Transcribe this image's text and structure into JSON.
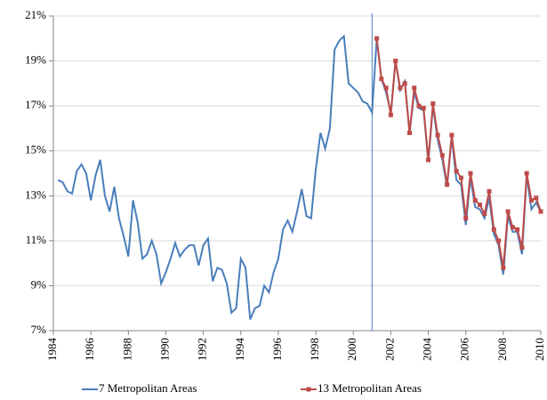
{
  "chart_data": {
    "type": "line",
    "xlim": [
      1984,
      2010
    ],
    "xticks": [
      1984,
      1986,
      1988,
      1990,
      1992,
      1994,
      1996,
      1998,
      2000,
      2002,
      2004,
      2006,
      2008,
      2010
    ],
    "ylim": [
      7,
      21
    ],
    "yticks": [
      {
        "value": 7,
        "label": "7%"
      },
      {
        "value": 9,
        "label": "9%"
      },
      {
        "value": 11,
        "label": "11%"
      },
      {
        "value": 13,
        "label": "13%"
      },
      {
        "value": 15,
        "label": "15%"
      },
      {
        "value": 17,
        "label": "17%"
      },
      {
        "value": 19,
        "label": "19%"
      },
      {
        "value": 21,
        "label": "21%"
      }
    ],
    "grid": true,
    "vline_x": 2001,
    "vline_color": "#4a7ebb",
    "legend": "bottom",
    "series": [
      {
        "name": "7 Metropolitan Areas",
        "color": "#4a7ebb",
        "marker": false,
        "x": [
          1984.25,
          1984.5,
          1984.75,
          1985,
          1985.25,
          1985.5,
          1985.75,
          1986,
          1986.25,
          1986.5,
          1986.75,
          1987,
          1987.25,
          1987.5,
          1987.75,
          1988,
          1988.25,
          1988.5,
          1988.75,
          1989,
          1989.25,
          1989.5,
          1989.75,
          1990,
          1990.25,
          1990.5,
          1990.75,
          1991,
          1991.25,
          1991.5,
          1991.75,
          1992,
          1992.25,
          1992.5,
          1992.75,
          1993,
          1993.25,
          1993.5,
          1993.75,
          1994,
          1994.25,
          1994.5,
          1994.75,
          1995,
          1995.25,
          1995.5,
          1995.75,
          1996,
          1996.25,
          1996.5,
          1996.75,
          1997,
          1997.25,
          1997.5,
          1997.75,
          1998,
          1998.25,
          1998.5,
          1998.75,
          1999,
          1999.25,
          1999.5,
          1999.75,
          2000,
          2000.25,
          2000.5,
          2000.75,
          2001,
          2001.25,
          2001.5,
          2001.75,
          2002,
          2002.25,
          2002.5,
          2002.75,
          2003,
          2003.25,
          2003.5,
          2003.75,
          2004,
          2004.25,
          2004.5,
          2004.75,
          2005,
          2005.25,
          2005.5,
          2005.75,
          2006,
          2006.25,
          2006.5,
          2006.75,
          2007,
          2007.25,
          2007.5,
          2007.75,
          2008,
          2008.25,
          2008.5,
          2008.75,
          2009,
          2009.25,
          2009.5,
          2009.75,
          2010
        ],
        "values": [
          13.7,
          13.6,
          13.2,
          13.1,
          14.1,
          14.4,
          14.0,
          12.8,
          13.9,
          14.6,
          13.0,
          12.3,
          13.4,
          12.0,
          11.2,
          10.3,
          12.8,
          11.8,
          10.2,
          10.4,
          11.0,
          10.4,
          9.1,
          9.6,
          10.2,
          10.9,
          10.3,
          10.6,
          10.8,
          10.8,
          9.9,
          10.8,
          11.1,
          9.2,
          9.8,
          9.7,
          9.1,
          7.8,
          8.0,
          10.2,
          9.8,
          7.5,
          8.0,
          8.1,
          9.0,
          8.7,
          9.6,
          10.2,
          11.5,
          11.9,
          11.4,
          12.3,
          13.3,
          12.1,
          12.0,
          14.2,
          15.8,
          15.1,
          16.0,
          19.5,
          19.9,
          20.1,
          18.0,
          17.8,
          17.6,
          17.2,
          17.1,
          16.7,
          20.0,
          18.2,
          17.6,
          16.7,
          19.0,
          17.7,
          18.1,
          15.8,
          17.6,
          16.9,
          16.8,
          14.5,
          17.0,
          15.5,
          14.6,
          13.4,
          15.6,
          13.7,
          13.5,
          11.7,
          13.8,
          12.5,
          12.4,
          12.0,
          12.9,
          11.3,
          10.8,
          9.5,
          12.1,
          11.4,
          11.4,
          10.4,
          13.9,
          12.4,
          12.7,
          12.3
        ]
      },
      {
        "name": "13 Metropolitan Areas",
        "color": "#be4b48",
        "marker": true,
        "x": [
          2001.25,
          2001.5,
          2001.75,
          2002,
          2002.25,
          2002.5,
          2002.75,
          2003,
          2003.25,
          2003.5,
          2003.75,
          2004,
          2004.25,
          2004.5,
          2004.75,
          2005,
          2005.25,
          2005.5,
          2005.75,
          2006,
          2006.25,
          2006.5,
          2006.75,
          2007,
          2007.25,
          2007.5,
          2007.75,
          2008,
          2008.25,
          2008.5,
          2008.75,
          2009,
          2009.25,
          2009.5,
          2009.75,
          2010
        ],
        "values": [
          20.0,
          18.2,
          17.8,
          16.6,
          19.0,
          17.8,
          18.0,
          15.8,
          17.8,
          17.0,
          16.9,
          14.6,
          17.1,
          15.7,
          14.8,
          13.5,
          15.7,
          14.1,
          13.8,
          12.0,
          14.0,
          12.8,
          12.6,
          12.2,
          13.2,
          11.5,
          11.0,
          9.8,
          12.3,
          11.6,
          11.5,
          10.7,
          14.0,
          12.8,
          12.9,
          12.3
        ]
      }
    ]
  }
}
